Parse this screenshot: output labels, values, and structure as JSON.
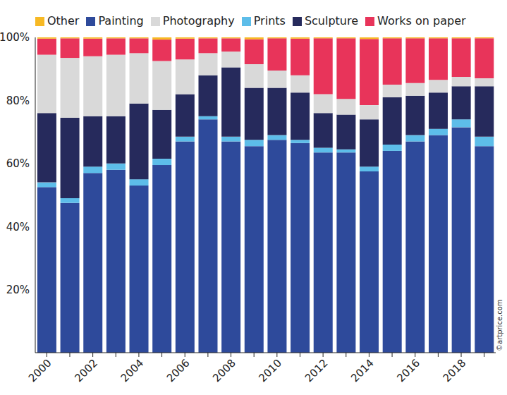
{
  "chart_data": {
    "type": "bar",
    "stacked": true,
    "grid": false,
    "legend": "top",
    "categories": [
      "2000",
      null,
      "2002",
      null,
      "2004",
      null,
      "2006",
      null,
      "2008",
      null,
      "2010",
      null,
      "2012",
      null,
      "2014",
      null,
      "2016",
      null,
      "2018",
      null
    ],
    "ylim": [
      0,
      100
    ],
    "yticks": [
      {
        "value": 20,
        "label": "20%"
      },
      {
        "value": 40,
        "label": "40%"
      },
      {
        "value": 60,
        "label": "60%"
      },
      {
        "value": 80,
        "label": "80%"
      },
      {
        "value": 100,
        "label": "100%"
      }
    ],
    "annotations": [
      "©artprice.com"
    ],
    "series": [
      {
        "name": "Painting",
        "color": "#2e4a9b",
        "values": [
          52.5,
          47.5,
          57,
          58,
          53,
          59.5,
          67,
          74,
          67,
          65.5,
          67.5,
          66.5,
          63.5,
          63.5,
          57.5,
          64,
          67,
          69,
          71.5,
          65.5
        ]
      },
      {
        "name": "Prints",
        "color": "#5dbde9",
        "values": [
          1.5,
          1.5,
          2,
          2,
          2,
          2,
          1.5,
          1,
          1.5,
          2,
          1.5,
          1,
          1.5,
          1,
          1.5,
          2,
          2,
          2,
          2.5,
          3
        ]
      },
      {
        "name": "Sculpture",
        "color": "#262a5c",
        "values": [
          22,
          25.5,
          16,
          15,
          24,
          15.5,
          13.5,
          13,
          22,
          16.5,
          15,
          15,
          11,
          11,
          15,
          15,
          12.5,
          11.5,
          10.5,
          16
        ]
      },
      {
        "name": "Photography",
        "color": "#d9d9d9",
        "values": [
          18.5,
          19,
          19,
          19.5,
          16,
          15.5,
          11,
          7,
          5,
          7.5,
          5.5,
          5.5,
          6,
          5,
          4.5,
          4,
          4,
          4,
          3,
          2.5
        ]
      },
      {
        "name": "Works on paper",
        "color": "#e8345a",
        "values": [
          5.1,
          6.2,
          5.6,
          5.2,
          4.7,
          6.8,
          6.6,
          4.7,
          4.2,
          7.9,
          10.2,
          11.6,
          17.7,
          19.2,
          21,
          14.7,
          14.2,
          13.2,
          12.2,
          12.7
        ]
      },
      {
        "name": "Other",
        "color": "#f7b924",
        "values": [
          0.4,
          0.3,
          0.4,
          0.3,
          0.3,
          0.7,
          0.4,
          0.3,
          0.3,
          0.6,
          0.3,
          0.4,
          0.3,
          0.3,
          0.5,
          0.3,
          0.3,
          0.3,
          0.3,
          0.3
        ]
      }
    ]
  }
}
